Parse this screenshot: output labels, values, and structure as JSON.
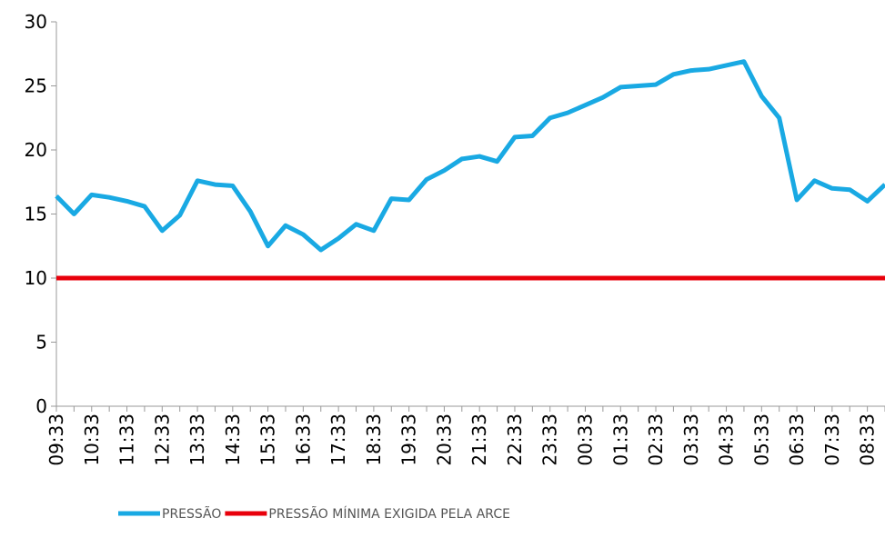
{
  "chart_data": {
    "type": "line",
    "categories": [
      "09:33",
      null,
      "10:33",
      null,
      "11:33",
      null,
      "12:33",
      null,
      "13:33",
      null,
      "14:33",
      null,
      "15:33",
      null,
      "16:33",
      null,
      "17:33",
      null,
      "18:33",
      null,
      "19:33",
      null,
      "20:33",
      null,
      "21:33",
      null,
      "22:33",
      null,
      "23:33",
      null,
      "00:33",
      null,
      "01:33",
      null,
      "02:33",
      null,
      "03:33",
      null,
      "04:33",
      null,
      "05:33",
      null,
      "06:33",
      null,
      "07:33",
      null,
      "08:33",
      null
    ],
    "series": [
      {
        "name": "PRESSÃO",
        "color": "#19a9e3",
        "values": [
          16.4,
          15.0,
          16.5,
          16.3,
          16.0,
          15.6,
          13.7,
          14.9,
          17.6,
          17.3,
          17.2,
          15.2,
          12.5,
          14.1,
          13.4,
          12.2,
          13.1,
          14.2,
          13.7,
          16.2,
          16.1,
          17.7,
          18.4,
          19.3,
          19.5,
          19.1,
          21.0,
          21.1,
          22.5,
          22.9,
          23.5,
          24.1,
          24.9,
          25.0,
          25.1,
          25.9,
          26.2,
          26.3,
          26.6,
          26.9,
          24.2,
          22.5,
          16.1,
          17.6,
          17.0,
          16.9,
          16.0,
          17.3
        ]
      },
      {
        "name": "PRESSÃO MÍNIMA EXIGIDA PELA ARCE",
        "color": "#e8000b",
        "values": [
          10,
          10,
          10,
          10,
          10,
          10,
          10,
          10,
          10,
          10,
          10,
          10,
          10,
          10,
          10,
          10,
          10,
          10,
          10,
          10,
          10,
          10,
          10,
          10,
          10,
          10,
          10,
          10,
          10,
          10,
          10,
          10,
          10,
          10,
          10,
          10,
          10,
          10,
          10,
          10,
          10,
          10,
          10,
          10,
          10,
          10,
          10,
          10
        ]
      }
    ],
    "ylim": [
      0,
      30
    ],
    "yticks": [
      0,
      5,
      10,
      15,
      20,
      25,
      30
    ],
    "grid": false,
    "legend": "bottom"
  }
}
